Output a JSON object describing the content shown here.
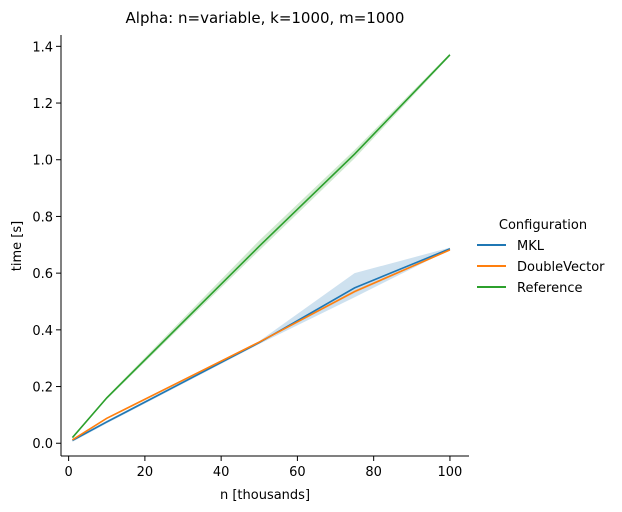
{
  "chart_data": {
    "type": "line",
    "title": "Alpha: n=variable, k=1000, m=1000",
    "xlabel": "n [thousands]",
    "ylabel": "time [s]",
    "xlim": [
      -2,
      105
    ],
    "ylim": [
      -0.045,
      1.44
    ],
    "xticks": [
      0,
      20,
      40,
      60,
      80,
      100
    ],
    "yticks": [
      0.0,
      0.2,
      0.4,
      0.6,
      0.8,
      1.0,
      1.2,
      1.4
    ],
    "xtick_labels": [
      "0",
      "20",
      "40",
      "60",
      "80",
      "100"
    ],
    "ytick_labels": [
      "0.0",
      "0.2",
      "0.4",
      "0.6",
      "0.8",
      "1.0",
      "1.2",
      "1.4"
    ],
    "grid": false,
    "legend": {
      "title": "Configuration",
      "placement": "right"
    },
    "x": [
      1,
      10,
      50,
      75,
      100
    ],
    "series": [
      {
        "name": "MKL",
        "color": "#1f77b4",
        "values": [
          0.01,
          0.075,
          0.355,
          0.548,
          0.686
        ],
        "band_lower": [
          0.005,
          0.07,
          0.35,
          0.515,
          0.683
        ],
        "band_upper": [
          0.015,
          0.08,
          0.36,
          0.6,
          0.69
        ]
      },
      {
        "name": "DoubleVector",
        "color": "#ff7f0e",
        "values": [
          0.012,
          0.088,
          0.357,
          0.535,
          0.682
        ],
        "band_lower": [
          0.01,
          0.085,
          0.354,
          0.53,
          0.68
        ],
        "band_upper": [
          0.014,
          0.091,
          0.36,
          0.54,
          0.684
        ]
      },
      {
        "name": "Reference",
        "color": "#2ca02c",
        "values": [
          0.02,
          0.16,
          0.695,
          1.02,
          1.37
        ],
        "band_lower": [
          0.018,
          0.155,
          0.68,
          1.005,
          1.365
        ],
        "band_upper": [
          0.022,
          0.165,
          0.715,
          1.035,
          1.375
        ]
      }
    ]
  }
}
